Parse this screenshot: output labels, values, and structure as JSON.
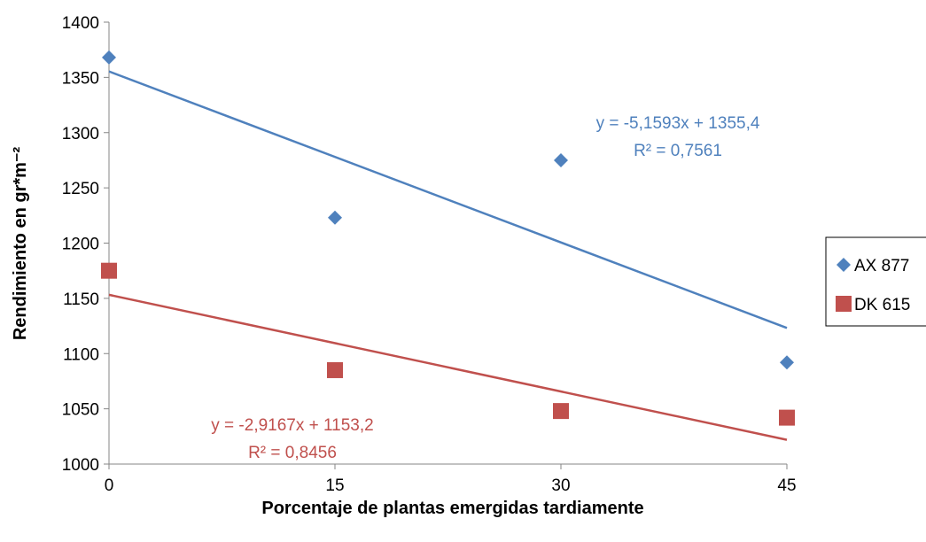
{
  "chart_data": {
    "type": "scatter",
    "xlabel": "Porcentaje de plantas emergidas tardiamente",
    "ylabel": "Rendimiento en gr*m⁻²",
    "xlim": [
      0,
      45
    ],
    "ylim": [
      1000,
      1400
    ],
    "x_ticks": [
      "0",
      "15",
      "30",
      "45"
    ],
    "y_ticks": [
      "1000",
      "1050",
      "1100",
      "1150",
      "1200",
      "1250",
      "1300",
      "1350",
      "1400"
    ],
    "grid": false,
    "legend_position": "right",
    "series": [
      {
        "name": "AX 877",
        "marker": "diamond",
        "color": "#4f81bd",
        "x": [
          0,
          15,
          30,
          45
        ],
        "y": [
          1368,
          1223,
          1275,
          1092
        ],
        "trendline": {
          "slope": -5.1593,
          "intercept": 1355.4,
          "equation": "y = -5,1593x + 1355,4",
          "r2": "R² = 0,7561"
        }
      },
      {
        "name": "DK 615",
        "marker": "square",
        "color": "#c0504d",
        "x": [
          0,
          15,
          30,
          45
        ],
        "y": [
          1175,
          1085,
          1048,
          1042
        ],
        "trendline": {
          "slope": -2.9167,
          "intercept": 1153.2,
          "equation": "y = -2,9167x + 1153,2",
          "r2": "R² = 0,8456"
        }
      }
    ]
  }
}
